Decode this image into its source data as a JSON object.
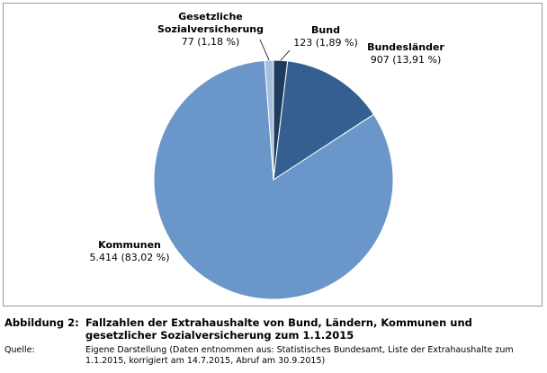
{
  "chart_data": {
    "type": "pie",
    "title": "",
    "slices": [
      {
        "name": "Bund",
        "value": 123,
        "value_label": "123 (1,89 %)",
        "color": "#1f3b5e"
      },
      {
        "name": "Bundesländer",
        "value": 907,
        "value_label": "907 (13,91 %)",
        "color": "#355f91"
      },
      {
        "name": "Kommunen",
        "value": 5414,
        "value_label": "5.414 (83,02 %)",
        "color": "#6a96c9"
      },
      {
        "name": "Gesetzliche Sozialversicherung",
        "name_lines": [
          "Gesetzliche",
          "Sozialversicherung"
        ],
        "value": 77,
        "value_label": "77 (1,18 %)",
        "color": "#a5bfdd"
      }
    ]
  },
  "caption": {
    "figure_label": "Abbildung 2:",
    "figure_text": "Fallzahlen der Extrahaushalte von Bund, Ländern, Kommunen und gesetzlicher Sozialversicherung zum 1.1.2015",
    "source_label": "Quelle:",
    "source_text": "Eigene Darstellung (Daten entnommen aus: Statistisches Bundesamt, Liste der Extrahaushalte zum 1.1.2015, korrigiert am 14.7.2015, Abruf am 30.9.2015)"
  }
}
